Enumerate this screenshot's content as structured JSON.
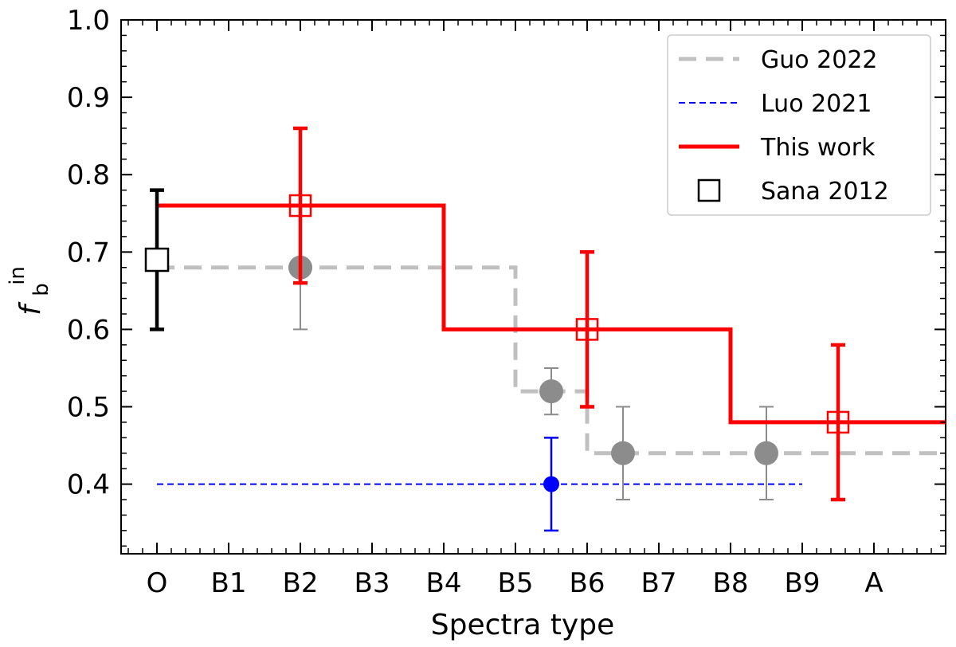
{
  "chart_data": {
    "type": "line",
    "xlabel": "Spectra type",
    "ylabel": "f",
    "ylabel_sub": "b",
    "ylabel_sup": "in",
    "categories": [
      "O",
      "B1",
      "B2",
      "B3",
      "B4",
      "B5",
      "B6",
      "B7",
      "B8",
      "B9",
      "A"
    ],
    "xlim": [
      -0.5,
      11.0
    ],
    "ylim": [
      0.31,
      1.0
    ],
    "yticks": [
      0.4,
      0.5,
      0.6,
      0.7,
      0.8,
      0.9,
      1.0
    ],
    "ytick_labels": [
      "0.4",
      "0.5",
      "0.6",
      "0.7",
      "0.8",
      "0.9",
      "1.0"
    ],
    "grid": false,
    "legend_position": "top-right",
    "series": [
      {
        "name": "Guo 2022",
        "style": "dashed-step",
        "color": "#c0c0c0",
        "step_x": [
          0,
          5,
          5,
          6,
          6,
          11
        ],
        "step_y": [
          0.68,
          0.68,
          0.52,
          0.52,
          0.44,
          0.44
        ],
        "points": [
          {
            "x": 2.0,
            "y": 0.68,
            "err_low": 0.08,
            "err_high": 0.0
          },
          {
            "x": 5.5,
            "y": 0.52,
            "err_low": 0.03,
            "err_high": 0.03
          },
          {
            "x": 6.5,
            "y": 0.44,
            "err_low": 0.06,
            "err_high": 0.06
          },
          {
            "x": 8.5,
            "y": 0.44,
            "err_low": 0.06,
            "err_high": 0.06
          }
        ],
        "point_color": "#8c8c8c"
      },
      {
        "name": "Luo 2021",
        "style": "dashed",
        "color": "#0000ff",
        "line_x": [
          0,
          9
        ],
        "line_y": [
          0.4,
          0.4
        ],
        "points": [
          {
            "x": 5.5,
            "y": 0.4,
            "err_low": 0.06,
            "err_high": 0.06
          }
        ]
      },
      {
        "name": "This work",
        "style": "solid-step",
        "color": "#ff0000",
        "step_x": [
          0,
          4,
          4,
          8,
          8,
          11
        ],
        "step_y": [
          0.76,
          0.76,
          0.6,
          0.6,
          0.48,
          0.48
        ],
        "points": [
          {
            "x": 2.0,
            "y": 0.76,
            "err_low": 0.1,
            "err_high": 0.1
          },
          {
            "x": 6.0,
            "y": 0.6,
            "err_low": 0.1,
            "err_high": 0.1
          },
          {
            "x": 9.5,
            "y": 0.48,
            "err_low": 0.1,
            "err_high": 0.1
          }
        ]
      },
      {
        "name": "Sana 2012",
        "style": "marker",
        "color": "#000000",
        "points": [
          {
            "x": 0.0,
            "y": 0.69,
            "err_low": 0.09,
            "err_high": 0.09
          }
        ]
      }
    ]
  }
}
